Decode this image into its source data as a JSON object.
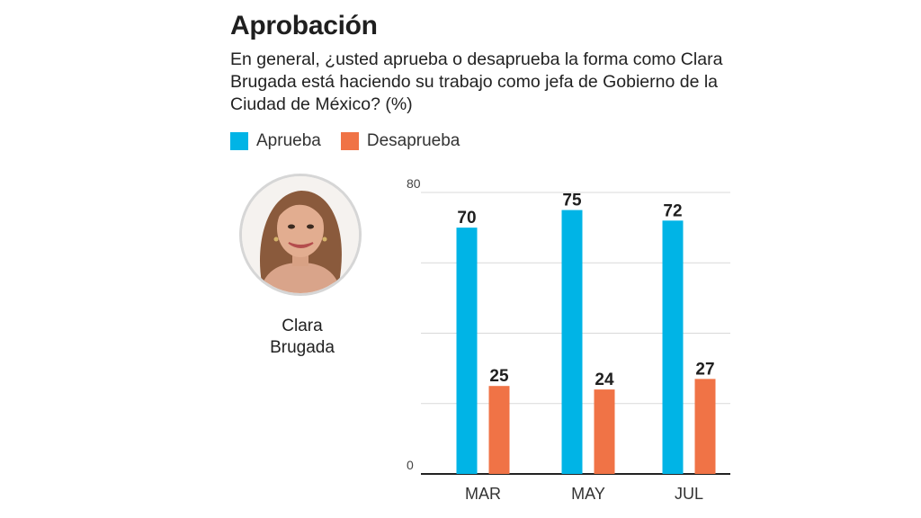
{
  "title": "Aprobación",
  "question": "En general, ¿usted aprueba o desaprueba la forma como Clara Brugada está haciendo su trabajo como jefa de Gobierno de la Ciudad de México? (%)",
  "person": {
    "name_line1": "Clara",
    "name_line2": "Brugada"
  },
  "colors": {
    "aprueba": "#00b4e6",
    "desaprueba": "#f07346",
    "grid": "#d9d9d9",
    "axis": "#222222"
  },
  "chart_data": {
    "type": "bar",
    "categories": [
      "MAR",
      "MAY",
      "JUL"
    ],
    "series": [
      {
        "name": "Aprueba",
        "values": [
          70,
          75,
          72
        ]
      },
      {
        "name": "Desaprueba",
        "values": [
          25,
          24,
          27
        ]
      }
    ],
    "ylim": [
      0,
      80
    ],
    "yticks": [
      0,
      80
    ],
    "gridlines": [
      20,
      40,
      60,
      80
    ],
    "legend": "top-left",
    "title": "Aprobación",
    "xlabel": "",
    "ylabel": ""
  }
}
